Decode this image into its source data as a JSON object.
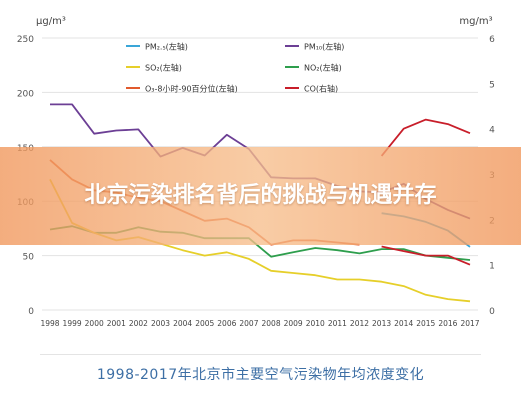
{
  "banner": {
    "title": "北京污染排名背后的挑战与机遇并存"
  },
  "caption": "1998-2017年北京市主要空气污染物年均浓度变化",
  "colors": {
    "pm25": "#3aa6d8",
    "pm10": "#6c3f95",
    "so2": "#e6cf2a",
    "no2": "#2e9e4d",
    "o3": "#e15a2d",
    "co": "#c81e2a"
  },
  "chart_data": {
    "type": "line",
    "title": "",
    "left_axis": {
      "unit": "μg/m³",
      "min": 0,
      "max": 250,
      "ticks": [
        0,
        50,
        100,
        150,
        200,
        250
      ]
    },
    "right_axis": {
      "unit": "mg/m³",
      "min": 0,
      "max": 6,
      "ticks": [
        0,
        1,
        2,
        3,
        4,
        5,
        6
      ]
    },
    "categories": [
      "1998",
      "1999",
      "2000",
      "2001",
      "2002",
      "2003",
      "2004",
      "2005",
      "2006",
      "2007",
      "2008",
      "2009",
      "2010",
      "2011",
      "2012",
      "2013",
      "2014",
      "2015",
      "2016",
      "2017"
    ],
    "legend": [
      {
        "label": "PM₂.₅(左轴)",
        "key": "pm25"
      },
      {
        "label": "PM₁₀(左轴)",
        "key": "pm10"
      },
      {
        "label": "SO₂(左轴)",
        "key": "so2"
      },
      {
        "label": "NO₂(左轴)",
        "key": "no2"
      },
      {
        "label": "O₃-8小时-90百分位(左轴)",
        "key": "o3"
      },
      {
        "label": "CO(右轴)",
        "key": "co"
      }
    ],
    "series": [
      {
        "key": "pm10",
        "axis": "left",
        "values": [
          189,
          189,
          162,
          165,
          166,
          141,
          149,
          142,
          161,
          148,
          122,
          121,
          121,
          114,
          109,
          108,
          116,
          102,
          92,
          84
        ]
      },
      {
        "key": "o3",
        "axis": "left",
        "values": [
          138,
          120,
          110,
          108,
          103,
          100,
          91,
          82,
          84,
          76,
          60,
          64,
          64,
          62,
          60,
          null,
          null,
          null,
          null,
          null
        ]
      },
      {
        "key": "no2",
        "axis": "left",
        "values": [
          74,
          77,
          71,
          71,
          76,
          72,
          71,
          66,
          66,
          66,
          49,
          53,
          57,
          55,
          52,
          56,
          56,
          50,
          48,
          46
        ]
      },
      {
        "key": "so2",
        "axis": "left",
        "values": [
          120,
          80,
          71,
          64,
          67,
          61,
          55,
          50,
          53,
          47,
          36,
          34,
          32,
          28,
          28,
          26,
          22,
          14,
          10,
          8
        ]
      },
      {
        "key": "pm25",
        "axis": "left",
        "values": [
          null,
          null,
          null,
          null,
          null,
          null,
          null,
          null,
          null,
          null,
          null,
          null,
          null,
          null,
          null,
          89,
          86,
          81,
          73,
          58
        ]
      },
      {
        "key": "co",
        "axis": "right",
        "values": [
          null,
          null,
          null,
          null,
          null,
          null,
          null,
          null,
          null,
          null,
          null,
          null,
          null,
          null,
          null,
          3.4,
          4.0,
          4.2,
          4.1,
          3.9
        ]
      },
      {
        "key": "co",
        "axis": "right",
        "values": [
          null,
          null,
          null,
          null,
          null,
          null,
          null,
          null,
          null,
          null,
          null,
          null,
          null,
          null,
          null,
          1.4,
          1.3,
          1.2,
          1.2,
          1.0
        ]
      }
    ],
    "grid": true
  }
}
